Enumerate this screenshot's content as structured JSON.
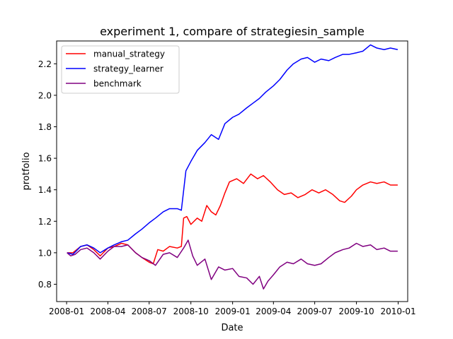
{
  "chart_data": {
    "type": "line",
    "title": "experiment 1, compare of strategiesin_sample",
    "xlabel": "Date",
    "ylabel": "protfolio",
    "x_range": [
      "2007-12-10",
      "2010-01-22"
    ],
    "ylim": [
      0.69,
      2.345
    ],
    "grid": false,
    "legend_position": "top-left",
    "x_ticks": [
      {
        "date": "2008-01-01",
        "label": "2008-01"
      },
      {
        "date": "2008-04-01",
        "label": "2008-04"
      },
      {
        "date": "2008-07-01",
        "label": "2008-07"
      },
      {
        "date": "2008-10-01",
        "label": "2008-10"
      },
      {
        "date": "2009-01-01",
        "label": "2009-01"
      },
      {
        "date": "2009-04-01",
        "label": "2009-04"
      },
      {
        "date": "2009-07-01",
        "label": "2009-07"
      },
      {
        "date": "2009-10-01",
        "label": "2009-10"
      },
      {
        "date": "2010-01-01",
        "label": "2010-01"
      }
    ],
    "y_ticks": [
      {
        "value": 0.8,
        "label": "0.8"
      },
      {
        "value": 1.0,
        "label": "1.0"
      },
      {
        "value": 1.2,
        "label": "1.2"
      },
      {
        "value": 1.4,
        "label": "1.4"
      },
      {
        "value": 1.6,
        "label": "1.6"
      },
      {
        "value": 1.8,
        "label": "1.8"
      },
      {
        "value": 2.0,
        "label": "2.0"
      },
      {
        "value": 2.2,
        "label": "2.2"
      }
    ],
    "series": [
      {
        "name": "manual_strategy",
        "color": "#ff0000",
        "points": [
          [
            "2008-01-02",
            1.0
          ],
          [
            "2008-01-15",
            1.0
          ],
          [
            "2008-02-01",
            1.04
          ],
          [
            "2008-02-15",
            1.05
          ],
          [
            "2008-03-01",
            1.02
          ],
          [
            "2008-03-15",
            0.98
          ],
          [
            "2008-04-01",
            1.03
          ],
          [
            "2008-04-15",
            1.04
          ],
          [
            "2008-05-01",
            1.06
          ],
          [
            "2008-05-15",
            1.05
          ],
          [
            "2008-06-01",
            1.0
          ],
          [
            "2008-06-15",
            0.97
          ],
          [
            "2008-07-01",
            0.94
          ],
          [
            "2008-07-10",
            0.93
          ],
          [
            "2008-07-20",
            1.02
          ],
          [
            "2008-08-01",
            1.01
          ],
          [
            "2008-08-15",
            1.04
          ],
          [
            "2008-09-01",
            1.03
          ],
          [
            "2008-09-10",
            1.04
          ],
          [
            "2008-09-15",
            1.22
          ],
          [
            "2008-09-22",
            1.23
          ],
          [
            "2008-10-01",
            1.18
          ],
          [
            "2008-10-15",
            1.22
          ],
          [
            "2008-10-25",
            1.2
          ],
          [
            "2008-11-05",
            1.3
          ],
          [
            "2008-11-15",
            1.26
          ],
          [
            "2008-11-25",
            1.24
          ],
          [
            "2008-12-05",
            1.3
          ],
          [
            "2008-12-15",
            1.38
          ],
          [
            "2008-12-25",
            1.45
          ],
          [
            "2009-01-10",
            1.47
          ],
          [
            "2009-01-25",
            1.44
          ],
          [
            "2009-02-10",
            1.5
          ],
          [
            "2009-02-25",
            1.47
          ],
          [
            "2009-03-10",
            1.49
          ],
          [
            "2009-03-25",
            1.45
          ],
          [
            "2009-04-10",
            1.4
          ],
          [
            "2009-04-25",
            1.37
          ],
          [
            "2009-05-10",
            1.38
          ],
          [
            "2009-05-25",
            1.35
          ],
          [
            "2009-06-10",
            1.37
          ],
          [
            "2009-06-25",
            1.4
          ],
          [
            "2009-07-10",
            1.38
          ],
          [
            "2009-07-25",
            1.4
          ],
          [
            "2009-08-10",
            1.37
          ],
          [
            "2009-08-25",
            1.33
          ],
          [
            "2009-09-05",
            1.32
          ],
          [
            "2009-09-20",
            1.36
          ],
          [
            "2009-10-01",
            1.4
          ],
          [
            "2009-10-15",
            1.43
          ],
          [
            "2009-11-01",
            1.45
          ],
          [
            "2009-11-15",
            1.44
          ],
          [
            "2009-12-01",
            1.45
          ],
          [
            "2009-12-15",
            1.43
          ],
          [
            "2009-12-31",
            1.43
          ]
        ]
      },
      {
        "name": "strategy_learner",
        "color": "#0000ff",
        "points": [
          [
            "2008-01-02",
            1.0
          ],
          [
            "2008-01-15",
            0.99
          ],
          [
            "2008-02-01",
            1.04
          ],
          [
            "2008-02-15",
            1.05
          ],
          [
            "2008-03-01",
            1.03
          ],
          [
            "2008-03-15",
            1.0
          ],
          [
            "2008-04-01",
            1.03
          ],
          [
            "2008-04-15",
            1.05
          ],
          [
            "2008-05-01",
            1.07
          ],
          [
            "2008-05-15",
            1.08
          ],
          [
            "2008-06-01",
            1.12
          ],
          [
            "2008-06-15",
            1.15
          ],
          [
            "2008-07-01",
            1.19
          ],
          [
            "2008-07-15",
            1.22
          ],
          [
            "2008-08-01",
            1.26
          ],
          [
            "2008-08-15",
            1.28
          ],
          [
            "2008-09-01",
            1.28
          ],
          [
            "2008-09-10",
            1.27
          ],
          [
            "2008-09-20",
            1.52
          ],
          [
            "2008-10-01",
            1.58
          ],
          [
            "2008-10-15",
            1.65
          ],
          [
            "2008-11-01",
            1.7
          ],
          [
            "2008-11-15",
            1.75
          ],
          [
            "2008-12-01",
            1.72
          ],
          [
            "2008-12-15",
            1.82
          ],
          [
            "2009-01-01",
            1.86
          ],
          [
            "2009-01-15",
            1.88
          ],
          [
            "2009-02-01",
            1.92
          ],
          [
            "2009-02-15",
            1.95
          ],
          [
            "2009-03-01",
            1.98
          ],
          [
            "2009-03-15",
            2.02
          ],
          [
            "2009-04-01",
            2.06
          ],
          [
            "2009-04-15",
            2.1
          ],
          [
            "2009-05-01",
            2.16
          ],
          [
            "2009-05-15",
            2.2
          ],
          [
            "2009-06-01",
            2.23
          ],
          [
            "2009-06-15",
            2.24
          ],
          [
            "2009-07-01",
            2.21
          ],
          [
            "2009-07-15",
            2.23
          ],
          [
            "2009-08-01",
            2.22
          ],
          [
            "2009-08-15",
            2.24
          ],
          [
            "2009-09-01",
            2.26
          ],
          [
            "2009-09-15",
            2.26
          ],
          [
            "2009-10-01",
            2.27
          ],
          [
            "2009-10-15",
            2.28
          ],
          [
            "2009-11-01",
            2.32
          ],
          [
            "2009-11-15",
            2.3
          ],
          [
            "2009-12-01",
            2.29
          ],
          [
            "2009-12-15",
            2.3
          ],
          [
            "2009-12-31",
            2.29
          ]
        ]
      },
      {
        "name": "benchmark",
        "color": "#800080",
        "points": [
          [
            "2008-01-02",
            1.0
          ],
          [
            "2008-01-10",
            0.98
          ],
          [
            "2008-01-20",
            0.99
          ],
          [
            "2008-02-01",
            1.02
          ],
          [
            "2008-02-15",
            1.03
          ],
          [
            "2008-03-01",
            1.0
          ],
          [
            "2008-03-15",
            0.96
          ],
          [
            "2008-04-01",
            1.01
          ],
          [
            "2008-04-15",
            1.04
          ],
          [
            "2008-05-01",
            1.04
          ],
          [
            "2008-05-15",
            1.05
          ],
          [
            "2008-06-01",
            1.0
          ],
          [
            "2008-06-15",
            0.97
          ],
          [
            "2008-07-01",
            0.95
          ],
          [
            "2008-07-15",
            0.92
          ],
          [
            "2008-08-01",
            0.99
          ],
          [
            "2008-08-15",
            1.0
          ],
          [
            "2008-09-01",
            0.97
          ],
          [
            "2008-09-15",
            1.03
          ],
          [
            "2008-09-25",
            1.08
          ],
          [
            "2008-10-05",
            0.98
          ],
          [
            "2008-10-15",
            0.92
          ],
          [
            "2008-11-01",
            0.96
          ],
          [
            "2008-11-15",
            0.83
          ],
          [
            "2008-12-01",
            0.91
          ],
          [
            "2008-12-15",
            0.89
          ],
          [
            "2009-01-01",
            0.9
          ],
          [
            "2009-01-15",
            0.85
          ],
          [
            "2009-02-01",
            0.84
          ],
          [
            "2009-02-15",
            0.8
          ],
          [
            "2009-03-01",
            0.85
          ],
          [
            "2009-03-10",
            0.77
          ],
          [
            "2009-03-20",
            0.82
          ],
          [
            "2009-04-01",
            0.86
          ],
          [
            "2009-04-15",
            0.91
          ],
          [
            "2009-05-01",
            0.94
          ],
          [
            "2009-05-15",
            0.93
          ],
          [
            "2009-06-01",
            0.96
          ],
          [
            "2009-06-15",
            0.93
          ],
          [
            "2009-07-01",
            0.92
          ],
          [
            "2009-07-15",
            0.93
          ],
          [
            "2009-08-01",
            0.97
          ],
          [
            "2009-08-15",
            1.0
          ],
          [
            "2009-09-01",
            1.02
          ],
          [
            "2009-09-15",
            1.03
          ],
          [
            "2009-10-01",
            1.06
          ],
          [
            "2009-10-15",
            1.04
          ],
          [
            "2009-11-01",
            1.05
          ],
          [
            "2009-11-15",
            1.02
          ],
          [
            "2009-12-01",
            1.03
          ],
          [
            "2009-12-15",
            1.01
          ],
          [
            "2009-12-31",
            1.01
          ]
        ]
      }
    ]
  }
}
